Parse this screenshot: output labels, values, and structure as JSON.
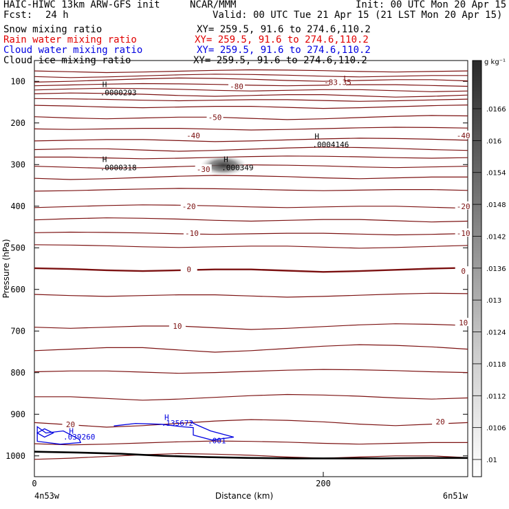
{
  "header": {
    "title_left": "HAIC-HIWC 13km ARW-GFS init",
    "title_center": "NCAR/MMM",
    "init": "Init: 00 UTC Mon 20 Apr 15",
    "fcst_label": "Fcst:",
    "fcst_value": "24 h",
    "valid": "Valid: 00 UTC Tue 21 Apr 15 (21 LST Mon 20 Apr 15)",
    "fields": [
      {
        "name": "Snow mixing ratio",
        "xy": "XY= 259.5, 91.6 to 274.6,110.2",
        "color": "#000000"
      },
      {
        "name": "Rain water mixing ratio",
        "xy": "XY= 259.5, 91.6 to 274.6,110.2",
        "color": "#e00000"
      },
      {
        "name": "Cloud water mixing ratio",
        "xy": "XY= 259.5, 91.6 to 274.6,110.2",
        "color": "#0000e0"
      },
      {
        "name": "Cloud ice mixing ratio",
        "xy": "XY= 259.5, 91.6 to 274.6,110.2",
        "color": "#000000"
      }
    ]
  },
  "chart_data": {
    "type": "cross-section",
    "xlabel": "Distance (km)",
    "ylabel": "Pressure (hPa)",
    "xlim": [
      0,
      300
    ],
    "ylim": [
      1050,
      50
    ],
    "x_ticks": [
      0,
      200
    ],
    "y_ticks": [
      100,
      200,
      300,
      400,
      500,
      600,
      700,
      800,
      900,
      1000
    ],
    "x_endpoints": [
      "4n53w",
      "6n51w"
    ],
    "temperature_contours": {
      "color": "#7b1010",
      "labeled": [
        {
          "value": "-83.35",
          "x": 210,
          "p": 102
        },
        {
          "value": "-80",
          "x": 140,
          "p": 112
        },
        {
          "value": "-50",
          "x": 125,
          "p": 186
        },
        {
          "value": "-40",
          "x": 110,
          "p": 230
        },
        {
          "value": "-40",
          "x": 297,
          "p": 230
        },
        {
          "value": "-30",
          "x": 117,
          "p": 311
        },
        {
          "value": "-20",
          "x": 107,
          "p": 400
        },
        {
          "value": "-20",
          "x": 297,
          "p": 400
        },
        {
          "value": "-10",
          "x": 109,
          "p": 465
        },
        {
          "value": "-10",
          "x": 297,
          "p": 465
        },
        {
          "value": "0",
          "x": 107,
          "p": 552
        },
        {
          "value": "0",
          "x": 297,
          "p": 556
        },
        {
          "value": "10",
          "x": 99,
          "p": 688
        },
        {
          "value": "10",
          "x": 297,
          "p": 680
        },
        {
          "value": "20",
          "x": 25,
          "p": 924
        },
        {
          "value": "20",
          "x": 281,
          "p": 918
        }
      ],
      "isotherm_levels_hPa": [
        75,
        86,
        96,
        108,
        120,
        132,
        144,
        160,
        186,
        213,
        240,
        262,
        282,
        304,
        330,
        360,
        400,
        432,
        465,
        496,
        552,
        613,
        688,
        740,
        796,
        858,
        920,
        968,
        1000
      ]
    },
    "cloud_water": {
      "color": "#0000e0",
      "labels": [
        {
          "text": "H",
          "x": 24,
          "p": 940
        },
        {
          "text": ".039260",
          "x": 20,
          "p": 954
        },
        {
          "text": "H",
          "x": 90,
          "p": 907
        },
        {
          "text": ".135672",
          "x": 88,
          "p": 921
        },
        {
          "text": ".001",
          "x": 120,
          "p": 963
        }
      ]
    },
    "maxima": [
      {
        "text": "H",
        "value": ".0000293",
        "x": 47,
        "p": 107
      },
      {
        "text": "H",
        "value": ".0004146",
        "x": 194,
        "p": 232
      },
      {
        "text": "H",
        "value": ".0000318",
        "x": 47,
        "p": 287
      },
      {
        "text": "H",
        "value": ".000349",
        "x": 131,
        "p": 287
      },
      {
        "text": "L",
        "value": "-83.35",
        "x": 214,
        "p": 93
      }
    ],
    "ground_pressure_hPa": [
      990,
      992,
      995,
      1000,
      1003,
      1005,
      1006,
      1006,
      1006,
      1005,
      1005
    ],
    "ice_blob": {
      "x": 131,
      "p": 302
    },
    "colorbar": {
      "unit": "g kg⁻¹",
      "ticks": [
        ".0166",
        ".016",
        ".0154",
        ".0148",
        ".0142",
        ".0136",
        ".013",
        ".0124",
        ".0118",
        ".0112",
        ".0106",
        ".01"
      ]
    }
  }
}
